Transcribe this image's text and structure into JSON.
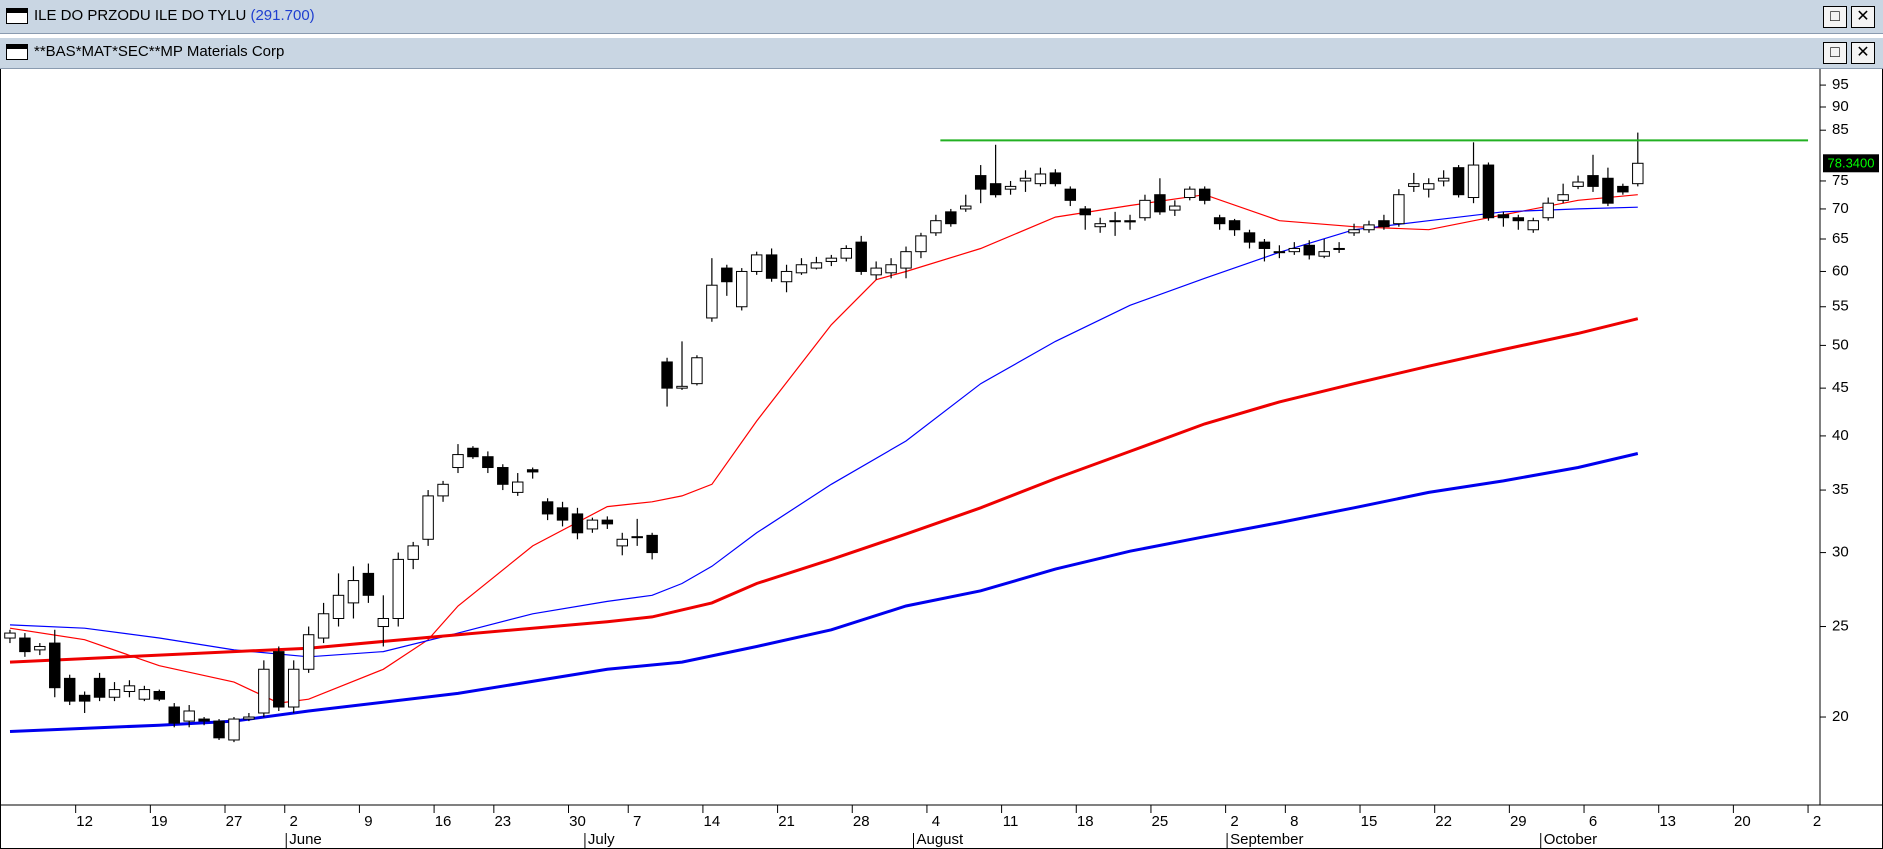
{
  "windows": [
    {
      "title": "ILE DO PRZODU ILE DO TYLU",
      "value": "(291.700)"
    },
    {
      "title": "**BAS*MAT*SEC**MP Materials Corp"
    }
  ],
  "chart_data": {
    "type": "candlestick",
    "log_scale": true,
    "ylim": [
      16.1,
      98.6
    ],
    "yticks": [
      20,
      25,
      30,
      35,
      40,
      45,
      50,
      55,
      60,
      65,
      70,
      75,
      85,
      90,
      95
    ],
    "xlim": [
      -0.6,
      121.2
    ],
    "xticks": [
      {
        "value": 5,
        "label": "12"
      },
      {
        "value": 10,
        "label": "19"
      },
      {
        "value": 15,
        "label": "27"
      },
      {
        "value": 19,
        "label": "2"
      },
      {
        "value": 24,
        "label": "9"
      },
      {
        "value": 29,
        "label": "16"
      },
      {
        "value": 33,
        "label": "23"
      },
      {
        "value": 38,
        "label": "30"
      },
      {
        "value": 42,
        "label": "7"
      },
      {
        "value": 47,
        "label": "14"
      },
      {
        "value": 52,
        "label": "21"
      },
      {
        "value": 57,
        "label": "28"
      },
      {
        "value": 62,
        "label": "4"
      },
      {
        "value": 67,
        "label": "11"
      },
      {
        "value": 72,
        "label": "18"
      },
      {
        "value": 77,
        "label": "25"
      },
      {
        "value": 82,
        "label": "2"
      },
      {
        "value": 86,
        "label": "8"
      },
      {
        "value": 91,
        "label": "15"
      },
      {
        "value": 96,
        "label": "22"
      },
      {
        "value": 101,
        "label": "29"
      },
      {
        "value": 106,
        "label": "6"
      },
      {
        "value": 111,
        "label": "13"
      },
      {
        "value": 116,
        "label": "20"
      },
      {
        "value": 121,
        "label": "2"
      }
    ],
    "months": [
      {
        "value": 18.5,
        "label": "June"
      },
      {
        "value": 38.5,
        "label": "July"
      },
      {
        "value": 60.5,
        "label": "August"
      },
      {
        "value": 81.5,
        "label": "September"
      },
      {
        "value": 102.5,
        "label": "October"
      }
    ],
    "up_color": "#ffffff",
    "down_color": "#000000",
    "candles": {
      "open": [
        24.3,
        24.3,
        23.6,
        24,
        22,
        21.1,
        22,
        21,
        21.3,
        20.9,
        21.3,
        20.5,
        19.8,
        19.9,
        19.8,
        18.9,
        19.9,
        20.2,
        23.5,
        20.5,
        22.5,
        24.3,
        25.5,
        26.5,
        28.5,
        25,
        25.5,
        29.5,
        31,
        34.5,
        37,
        38.8,
        38,
        37,
        34.8,
        36.8,
        34,
        33.5,
        33,
        31.8,
        32.5,
        30.5,
        31.2,
        31.3,
        48,
        45,
        45.5,
        53.5,
        60.5,
        55,
        60,
        62.5,
        58.5,
        59.8,
        60.5,
        61.5,
        62,
        64.5,
        59.5,
        59.8,
        60.5,
        63,
        66,
        69.5,
        70,
        76,
        74.5,
        73.5,
        75,
        74.5,
        76.5,
        73.5,
        70,
        67,
        68,
        68,
        68.5,
        72.5,
        69.8,
        72,
        73.5,
        68.5,
        68,
        66,
        64.5,
        63,
        63,
        64,
        62.3,
        63.5,
        66,
        66.5,
        68,
        67.5,
        74,
        73.5,
        75,
        77.5,
        72,
        78,
        69,
        68.5,
        66.5,
        68.5,
        71.5,
        74,
        76,
        75.5,
        74,
        74.5
      ],
      "high": [
        24.8,
        24.6,
        24,
        24.8,
        22.2,
        21.3,
        22.3,
        21.8,
        21.9,
        21.6,
        21.4,
        20.7,
        20.6,
        20,
        19.9,
        20,
        20.2,
        23,
        23.8,
        23,
        25,
        26.5,
        28.5,
        29,
        29.2,
        27,
        30,
        30.8,
        35,
        35.8,
        39.2,
        39,
        38.5,
        37.3,
        36.5,
        37,
        34.3,
        34,
        33.5,
        32.7,
        32.8,
        31.5,
        32.6,
        31.5,
        48.5,
        50.5,
        48.8,
        62,
        61,
        60.5,
        63,
        63.5,
        61,
        62,
        62.2,
        62.5,
        64,
        65.5,
        61.5,
        62,
        63.8,
        66,
        69,
        70,
        72.5,
        78,
        82,
        75,
        77,
        77.5,
        77.2,
        74,
        70.5,
        68.5,
        69.5,
        69,
        72.5,
        75.5,
        71.5,
        74,
        74,
        69,
        68.3,
        66.5,
        65,
        64,
        64.5,
        64.8,
        65,
        64.5,
        67.5,
        68,
        69,
        73.5,
        76.5,
        75.5,
        77,
        78,
        82.5,
        78.5,
        69.5,
        69,
        68.5,
        72,
        74.5,
        76,
        80,
        77.5,
        74.5,
        84.5
      ],
      "low": [
        24,
        23.2,
        23.3,
        21,
        20.6,
        20.2,
        20.8,
        20.8,
        21,
        20.8,
        20.8,
        19.5,
        19.5,
        19.6,
        18.9,
        18.8,
        19.8,
        20,
        20.3,
        20.2,
        22.3,
        24,
        25,
        25.5,
        26.5,
        23.8,
        25,
        28.8,
        30.5,
        34,
        36.5,
        37.8,
        36.5,
        35,
        34.5,
        36,
        32.5,
        32,
        31,
        31.5,
        31.8,
        29.8,
        30.5,
        29.5,
        43,
        44.8,
        45.3,
        53,
        56.5,
        54.5,
        59.5,
        58.5,
        57,
        59.5,
        60.3,
        60.8,
        61.5,
        59.5,
        58.8,
        59,
        59,
        62,
        65.5,
        67,
        69.5,
        71,
        72,
        72.5,
        73,
        74,
        74,
        70.5,
        66.5,
        66,
        65.5,
        66.5,
        68,
        69,
        68.8,
        71.5,
        70.8,
        66.5,
        65.5,
        63.5,
        61.5,
        62,
        62.5,
        61.8,
        62,
        62.8,
        65.5,
        66,
        66.5,
        67,
        73,
        72,
        74,
        72,
        71,
        68,
        67,
        66.5,
        66,
        68,
        71,
        73.5,
        73,
        70.5,
        72.5,
        74
      ],
      "close": [
        24.6,
        23.5,
        23.8,
        21.5,
        20.8,
        20.8,
        21,
        21.4,
        21.6,
        21.4,
        20.9,
        19.7,
        20.3,
        19.8,
        19,
        19.9,
        20,
        22.5,
        20.5,
        22.5,
        24.5,
        25.8,
        27,
        28,
        27,
        25.5,
        29.5,
        30.5,
        34.5,
        35.5,
        38.2,
        38,
        37,
        35.5,
        35.7,
        36.6,
        33,
        32.5,
        31.5,
        32.5,
        32.2,
        31,
        31.2,
        30,
        45,
        45.2,
        48.5,
        58,
        58.5,
        60,
        62.5,
        59,
        60,
        61,
        61.3,
        62,
        63.5,
        60,
        60.5,
        61,
        63,
        65.5,
        68,
        67.5,
        70.5,
        73.5,
        72.5,
        74,
        75.5,
        76.3,
        74.5,
        71.5,
        69,
        67.5,
        68,
        67.8,
        71.5,
        69.5,
        70.5,
        73.5,
        71.5,
        67.5,
        66.5,
        64.5,
        63.5,
        63,
        63.5,
        62.5,
        63,
        63.5,
        66.5,
        67.3,
        67,
        72.5,
        74.5,
        74.5,
        75.5,
        72.5,
        78,
        68.5,
        68.5,
        68,
        68,
        71,
        72.5,
        74.8,
        74,
        71,
        73,
        78.34
      ]
    },
    "lines": [
      {
        "color": "#ff0000",
        "width": 1.2,
        "x": [
          0,
          5,
          10,
          15,
          18,
          20,
          25,
          28,
          30,
          35,
          40,
          43,
          45,
          47,
          50,
          55,
          58,
          60,
          65,
          70,
          75,
          80,
          85,
          90,
          95,
          100,
          105,
          109
        ],
        "values": [
          24.9,
          24.2,
          22.7,
          21.8,
          20.7,
          20.9,
          22.5,
          24.2,
          26.3,
          30.5,
          33.6,
          34,
          34.5,
          35.5,
          41.5,
          52.6,
          58.8,
          60,
          63.5,
          68.6,
          70.6,
          72.5,
          68,
          67,
          66.5,
          69,
          71.5,
          72.5
        ]
      },
      {
        "color": "#0000ff",
        "width": 1.2,
        "x": [
          0,
          5,
          10,
          15,
          20,
          25,
          30,
          35,
          40,
          43,
          45,
          47,
          50,
          55,
          60,
          65,
          70,
          75,
          80,
          85,
          90,
          95,
          100,
          105,
          109
        ],
        "values": [
          25.1,
          24.9,
          24.3,
          23.6,
          23.2,
          23.5,
          24.6,
          25.8,
          26.6,
          27,
          27.8,
          29,
          31.5,
          35.5,
          39.5,
          45.5,
          50.5,
          55.2,
          59,
          62.9,
          66.5,
          68,
          69.5,
          70,
          70.3
        ]
      },
      {
        "color": "#ee0000",
        "width": 3,
        "x": [
          0,
          10,
          20,
          30,
          40,
          43,
          47,
          50,
          55,
          60,
          65,
          70,
          75,
          80,
          85,
          90,
          95,
          100,
          105,
          109
        ],
        "values": [
          22.9,
          23.3,
          23.7,
          24.5,
          25.3,
          25.6,
          26.5,
          27.8,
          29.5,
          31.4,
          33.5,
          36,
          38.5,
          41.2,
          43.5,
          45.5,
          47.5,
          49.5,
          51.5,
          53.4
        ]
      },
      {
        "color": "#0000ee",
        "width": 3,
        "x": [
          0,
          10,
          15,
          20,
          30,
          40,
          45,
          50,
          55,
          60,
          65,
          70,
          75,
          80,
          85,
          90,
          95,
          100,
          105,
          109
        ],
        "values": [
          19.3,
          19.6,
          19.8,
          20.3,
          21.2,
          22.5,
          22.9,
          23.8,
          24.8,
          26.3,
          27.3,
          28.8,
          30.1,
          31.2,
          32.3,
          33.5,
          34.8,
          35.8,
          37,
          38.3
        ]
      }
    ],
    "resistance": {
      "value": 82.9,
      "x": [
        62.3,
        120.4
      ],
      "color": "#22b022"
    },
    "last_price": {
      "value": 78.34,
      "label": "78.3400"
    }
  }
}
